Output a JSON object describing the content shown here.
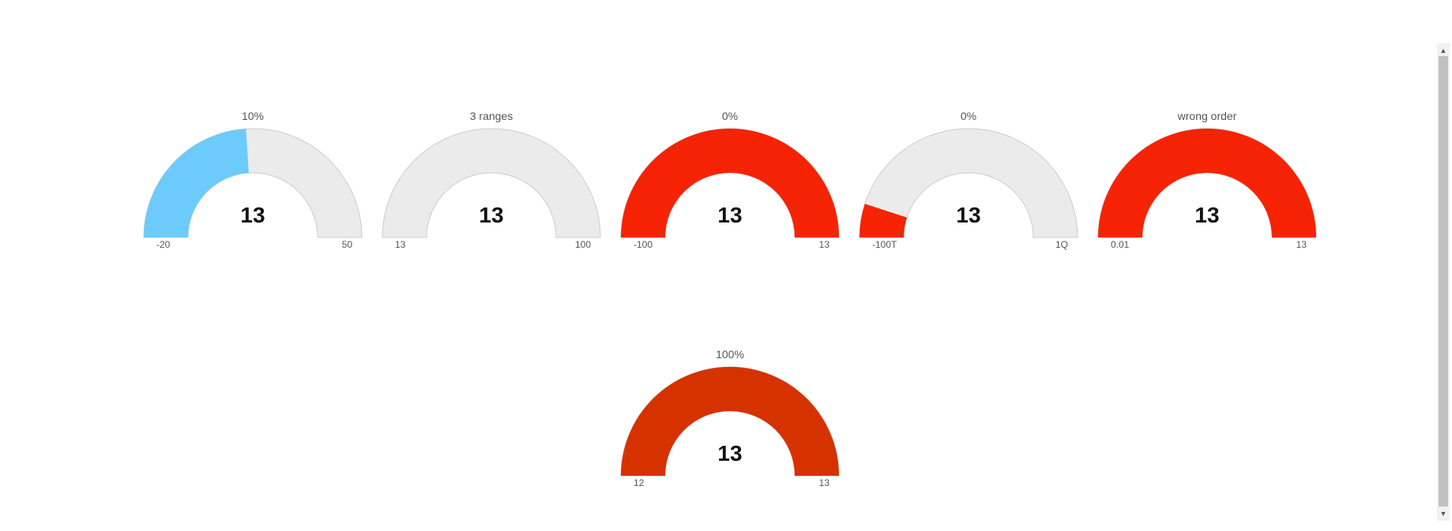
{
  "gauges": [
    {
      "title": "10%",
      "value": "13",
      "min_label": "-20",
      "max_label": "50",
      "fill_fraction": 0.48,
      "fill_color": "#6ccbfb",
      "track_color": "#ebebeb",
      "stroke_color": "#cccccc"
    },
    {
      "title": "3 ranges",
      "value": "13",
      "min_label": "13",
      "max_label": "100",
      "fill_fraction": 0.0,
      "fill_color": "#6ccbfb",
      "track_color": "#ebebeb",
      "stroke_color": "#cccccc"
    },
    {
      "title": "0%",
      "value": "13",
      "min_label": "-100",
      "max_label": "13",
      "fill_fraction": 1.0,
      "fill_color": "#f52303",
      "track_color": "#ebebeb",
      "stroke_color": "#cccccc"
    },
    {
      "title": "0%",
      "value": "13",
      "min_label": "-100T",
      "max_label": "1Q",
      "fill_fraction": 0.1,
      "fill_color": "#f52303",
      "track_color": "#ebebeb",
      "stroke_color": "#cccccc"
    },
    {
      "title": "wrong order",
      "value": "13",
      "min_label": "0.01",
      "max_label": "13",
      "fill_fraction": 1.0,
      "fill_color": "#f52303",
      "track_color": "#ebebeb",
      "stroke_color": "#cccccc"
    },
    {
      "title": "100%",
      "value": "13",
      "min_label": "12",
      "max_label": "13",
      "fill_fraction": 1.0,
      "fill_color": "#d63200",
      "track_color": "#ebebeb",
      "stroke_color": "#cccccc"
    }
  ]
}
